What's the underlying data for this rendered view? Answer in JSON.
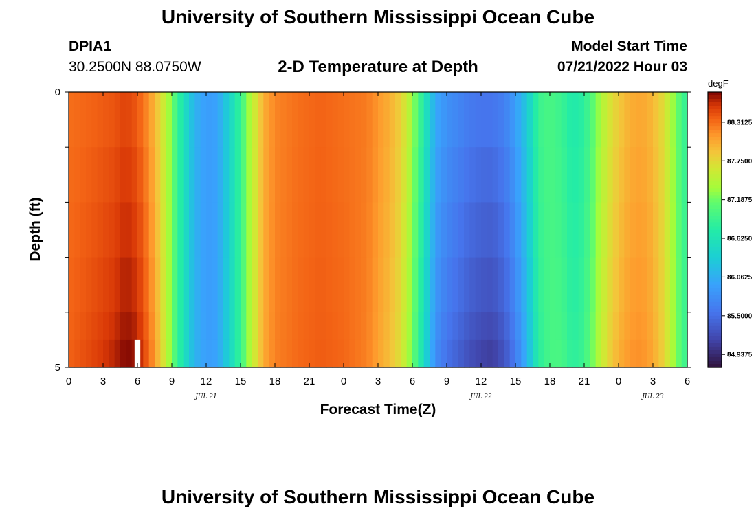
{
  "page": {
    "title": "University of Southern Mississippi Ocean Cube",
    "station": "DPIA1",
    "coordinates": "30.2500N  88.0750W",
    "subtitle": "2-D Temperature at Depth",
    "model_start_label": "Model Start Time",
    "model_start_value": "07/21/2022 Hour 03",
    "footer_title": "University of Southern Mississippi Ocean Cube"
  },
  "chart_data": {
    "type": "heatmap",
    "xlabel": "Forecast Time(Z)",
    "ylabel": "Depth (ft)",
    "x_tick_labels": [
      "0",
      "3",
      "6",
      "9",
      "12",
      "15",
      "18",
      "21",
      "0",
      "3",
      "6",
      "9",
      "12",
      "15",
      "18",
      "21",
      "0",
      "3",
      "6"
    ],
    "x_hours": [
      0,
      3,
      6,
      9,
      12,
      15,
      18,
      21,
      24,
      27,
      30,
      33,
      36,
      39,
      42,
      45,
      48,
      51,
      54
    ],
    "xlim": [
      0,
      54
    ],
    "date_labels": [
      {
        "text": "JUL 21",
        "hour": 12
      },
      {
        "text": "JUL 22",
        "hour": 36
      },
      {
        "text": "JUL 23",
        "hour": 51
      }
    ],
    "y_tick_labels": [
      "0",
      "5"
    ],
    "ylim": [
      0,
      5
    ],
    "y_ticks": [
      0,
      1,
      2,
      3,
      4,
      5
    ],
    "depth_layers": [
      0,
      1,
      2,
      3,
      4,
      4.5
    ],
    "colorbar": {
      "unit": "degF",
      "range": [
        84.75,
        88.75
      ],
      "ticks": [
        "88.3125",
        "87.7500",
        "87.1875",
        "86.6250",
        "86.0625",
        "85.5000",
        "84.9375"
      ]
    },
    "surface_temperature": [
      {
        "hour": 0,
        "value": 88.3
      },
      {
        "hour": 2,
        "value": 88.35
      },
      {
        "hour": 4,
        "value": 88.42
      },
      {
        "hour": 5,
        "value": 88.5
      },
      {
        "hour": 6,
        "value": 88.4
      },
      {
        "hour": 7,
        "value": 88.15
      },
      {
        "hour": 8,
        "value": 87.75
      },
      {
        "hour": 9,
        "value": 87.2
      },
      {
        "hour": 10,
        "value": 86.6
      },
      {
        "hour": 11,
        "value": 86.1
      },
      {
        "hour": 12,
        "value": 85.9
      },
      {
        "hour": 13,
        "value": 85.95
      },
      {
        "hour": 14,
        "value": 86.4
      },
      {
        "hour": 15,
        "value": 86.9
      },
      {
        "hour": 16,
        "value": 87.5
      },
      {
        "hour": 17,
        "value": 88.0
      },
      {
        "hour": 18,
        "value": 88.2
      },
      {
        "hour": 20,
        "value": 88.3
      },
      {
        "hour": 22,
        "value": 88.35
      },
      {
        "hour": 24,
        "value": 88.3
      },
      {
        "hour": 26,
        "value": 88.25
      },
      {
        "hour": 28,
        "value": 88.0
      },
      {
        "hour": 29,
        "value": 87.8
      },
      {
        "hour": 30,
        "value": 87.35
      },
      {
        "hour": 31,
        "value": 86.7
      },
      {
        "hour": 32,
        "value": 86.0
      },
      {
        "hour": 33,
        "value": 85.8
      },
      {
        "hour": 34,
        "value": 85.7
      },
      {
        "hour": 35,
        "value": 85.6
      },
      {
        "hour": 36,
        "value": 85.55
      },
      {
        "hour": 37,
        "value": 85.55
      },
      {
        "hour": 38,
        "value": 85.65
      },
      {
        "hour": 39,
        "value": 85.9
      },
      {
        "hour": 40,
        "value": 86.3
      },
      {
        "hour": 41,
        "value": 86.9
      },
      {
        "hour": 42,
        "value": 87.0
      },
      {
        "hour": 43,
        "value": 86.9
      },
      {
        "hour": 44,
        "value": 86.7
      },
      {
        "hour": 45,
        "value": 86.8
      },
      {
        "hour": 46,
        "value": 87.2
      },
      {
        "hour": 47,
        "value": 87.6
      },
      {
        "hour": 48,
        "value": 87.85
      },
      {
        "hour": 49,
        "value": 88.0
      },
      {
        "hour": 50,
        "value": 88.05
      },
      {
        "hour": 51,
        "value": 87.95
      },
      {
        "hour": 52,
        "value": 87.7
      },
      {
        "hour": 53,
        "value": 87.2
      },
      {
        "hour": 54,
        "value": 86.8
      }
    ],
    "depth_delta": [
      {
        "hour": 0,
        "delta": 0.03
      },
      {
        "hour": 6,
        "delta": 0.15
      },
      {
        "hour": 9,
        "delta": 0.0
      },
      {
        "hour": 24,
        "delta": 0.02
      },
      {
        "hour": 31,
        "delta": -0.1
      },
      {
        "hour": 37,
        "delta": -0.25
      },
      {
        "hour": 40,
        "delta": -0.12
      },
      {
        "hour": 43,
        "delta": 0.05
      },
      {
        "hour": 48,
        "delta": 0.08
      },
      {
        "hour": 54,
        "delta": 0.02
      }
    ]
  }
}
